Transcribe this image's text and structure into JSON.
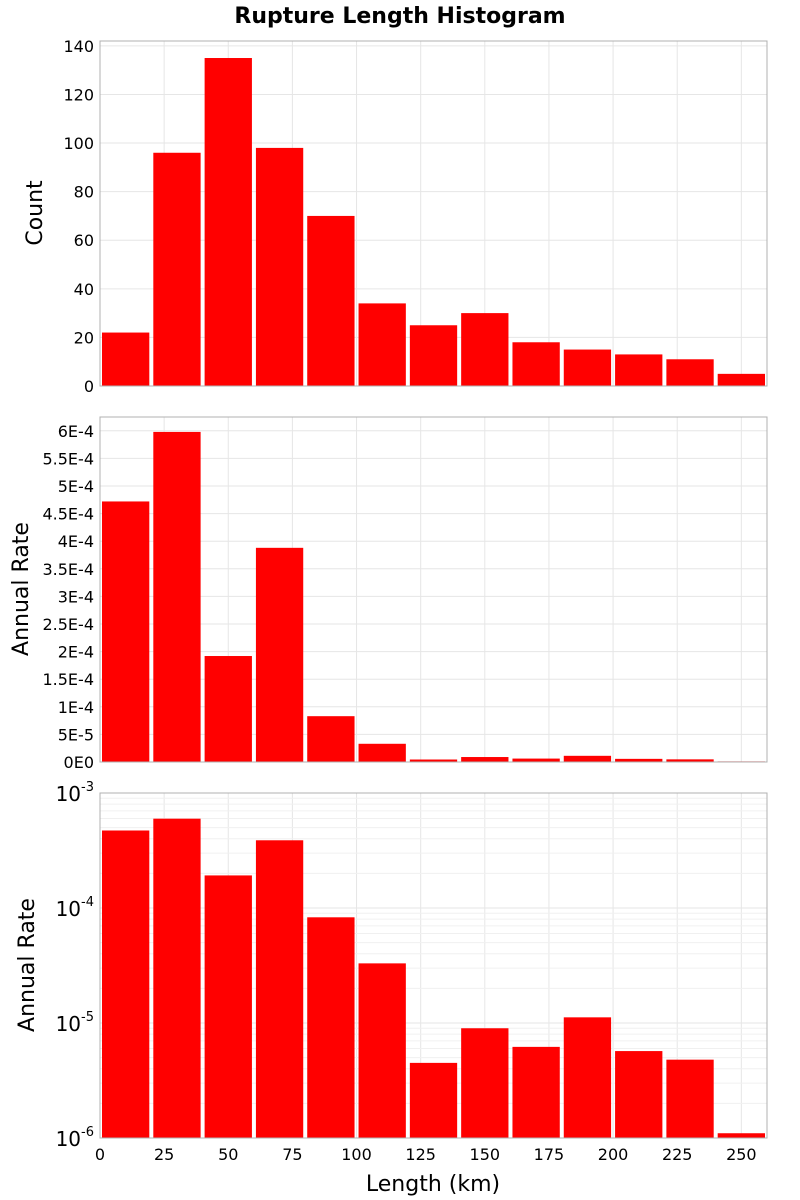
{
  "figure": {
    "title": "Rupture Length Histogram",
    "xlabel": "Length (km)"
  },
  "colors": {
    "bar": "#ff0000",
    "grid": "#e6e6e6",
    "frame": "#b0b0b0"
  },
  "chart_data": [
    {
      "type": "bar",
      "title": "Rupture Length Histogram",
      "xlabel": "",
      "ylabel": "Count",
      "scale": "linear",
      "x": [
        10,
        30,
        50,
        70,
        90,
        110,
        130,
        150,
        170,
        190,
        210,
        230,
        250
      ],
      "bin_width": 20,
      "values": [
        22,
        96,
        135,
        98,
        70,
        34,
        25,
        30,
        18,
        15,
        13,
        11,
        5
      ],
      "xlim": [
        0,
        260
      ],
      "ylim": [
        0,
        142
      ],
      "yticks": [
        0,
        20,
        40,
        60,
        80,
        100,
        120,
        140
      ],
      "ytick_labels": [
        "0",
        "20",
        "40",
        "60",
        "80",
        "100",
        "120",
        "140"
      ],
      "grid": true
    },
    {
      "type": "bar",
      "xlabel": "",
      "ylabel": "Annual Rate",
      "scale": "linear",
      "x": [
        10,
        30,
        50,
        70,
        90,
        110,
        130,
        150,
        170,
        190,
        210,
        230,
        250
      ],
      "bin_width": 20,
      "values": [
        0.000472,
        0.000598,
        0.000192,
        0.000388,
        8.3e-05,
        3.3e-05,
        4.5e-06,
        9e-06,
        6.2e-06,
        1.12e-05,
        5.7e-06,
        4.8e-06,
        1.1e-06
      ],
      "xlim": [
        0,
        260
      ],
      "ylim": [
        0,
        0.000625
      ],
      "yticks": [
        0,
        5e-05,
        0.0001,
        0.00015,
        0.0002,
        0.00025,
        0.0003,
        0.00035,
        0.0004,
        0.00045,
        0.0005,
        0.00055,
        0.0006
      ],
      "ytick_labels": [
        "0E0",
        "5E-5",
        "1E-4",
        "1.5E-4",
        "2E-4",
        "2.5E-4",
        "3E-4",
        "3.5E-4",
        "4E-4",
        "4.5E-4",
        "5E-4",
        "5.5E-4",
        "6E-4"
      ],
      "grid": true
    },
    {
      "type": "bar",
      "xlabel": "Length (km)",
      "ylabel": "Annual Rate",
      "scale": "log",
      "x": [
        10,
        30,
        50,
        70,
        90,
        110,
        130,
        150,
        170,
        190,
        210,
        230,
        250
      ],
      "bin_width": 20,
      "values": [
        0.000472,
        0.000598,
        0.000192,
        0.000388,
        8.3e-05,
        3.3e-05,
        4.5e-06,
        9e-06,
        6.2e-06,
        1.12e-05,
        5.7e-06,
        4.8e-06,
        1.1e-06
      ],
      "xlim": [
        0,
        260
      ],
      "ylim": [
        1e-06,
        0.001
      ],
      "ytick_labels": [
        {
          "base": "10",
          "exp": "-6"
        },
        {
          "base": "10",
          "exp": "-5"
        },
        {
          "base": "10",
          "exp": "-4"
        },
        {
          "base": "10",
          "exp": "-3"
        }
      ],
      "xticks": [
        0,
        25,
        50,
        75,
        100,
        125,
        150,
        175,
        200,
        225,
        250
      ],
      "xtick_labels": [
        "0",
        "25",
        "50",
        "75",
        "100",
        "125",
        "150",
        "175",
        "200",
        "225",
        "250"
      ],
      "grid": true
    }
  ]
}
